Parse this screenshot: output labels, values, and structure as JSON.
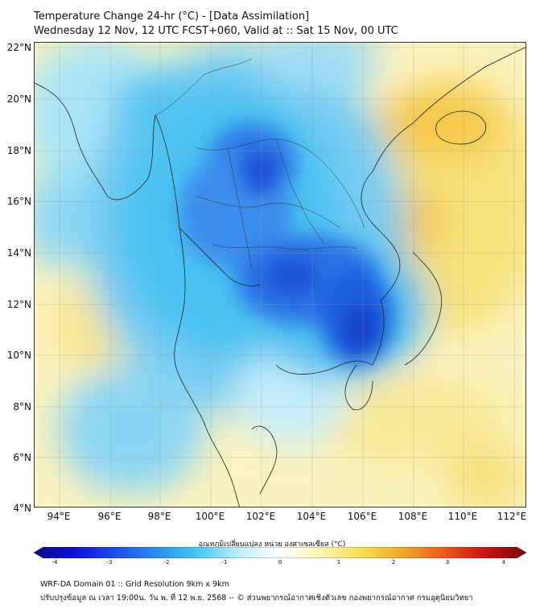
{
  "header": {
    "title_line1": "Temperature Change 24-hr (°C) - [Data Assimilation]",
    "title_line2": "Wednesday 12 Nov, 12 UTC FCST+060, Valid at :: Sat 15 Nov, 00 UTC"
  },
  "map": {
    "lat_labels": [
      "22°N",
      "20°N",
      "18°N",
      "16°N",
      "14°N",
      "12°N",
      "10°N",
      "8°N",
      "6°N",
      "4°N"
    ],
    "lon_labels": [
      "94°E",
      "96°E",
      "98°E",
      "100°E",
      "102°E",
      "104°E",
      "106°E",
      "108°E",
      "110°E",
      "112°E"
    ],
    "lat_range": [
      4,
      22
    ],
    "lon_range": [
      93,
      112.5
    ]
  },
  "colorbar": {
    "label": "อุณหภูมิเปลี่ยนแปลง หน่วย องศาเซลเซียส (°C)",
    "ticks": [
      "-4",
      "-3",
      "-2",
      "-1",
      "0",
      "1",
      "2",
      "3",
      "4"
    ],
    "range": [
      -4,
      4
    ],
    "colors": [
      "#0a0a8c",
      "#1010d8",
      "#1d4fe6",
      "#2a8ef0",
      "#48c8f4",
      "#bfeefb",
      "#ffffff",
      "#fbf5b0",
      "#f7dc52",
      "#f2a52a",
      "#ea5b16",
      "#c81212",
      "#7a0a0a"
    ]
  },
  "footer": {
    "line1": "WRF-DA Domain 01 :: Grid Resolution 9km x 9km",
    "line2": "ปรับปรุงข้อมูล ณ เวลา 19:00น. วัน พ. ที่ 12 พ.ย. 2568 -- © ส่วนพยากรณ์อากาศเชิงตัวเลข กองพยากรณ์อากาศ กรมอุตุนิยมวิทยา"
  }
}
